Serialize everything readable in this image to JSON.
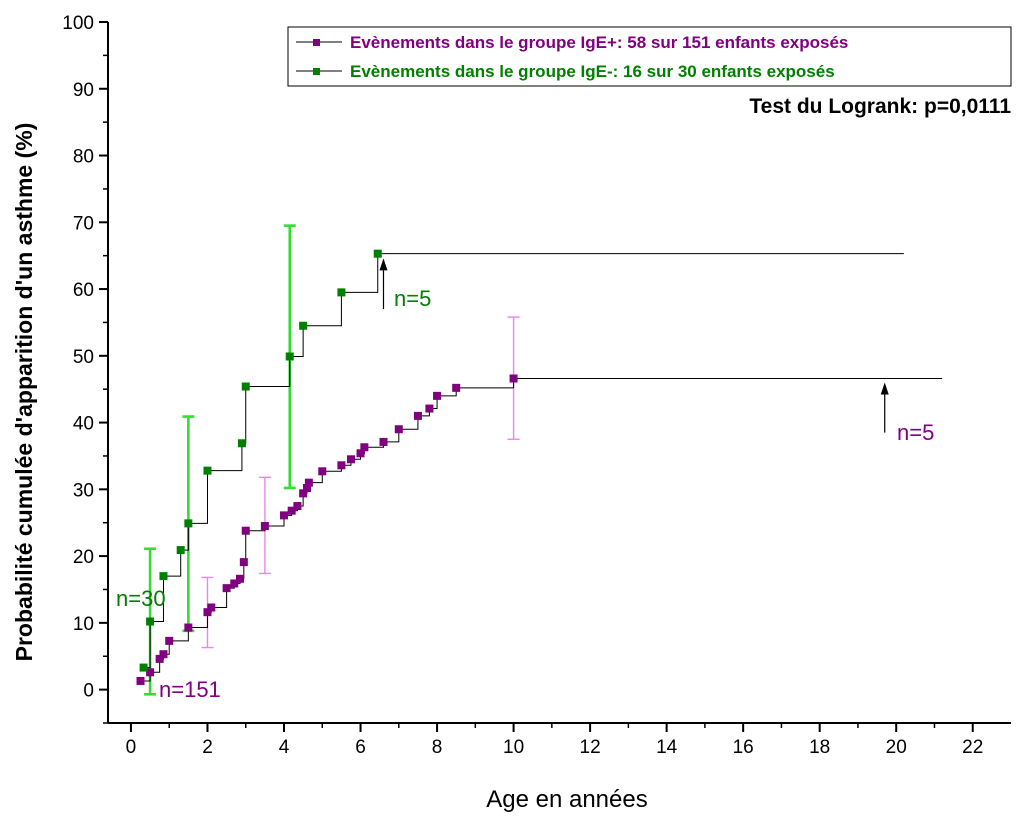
{
  "chart_data": {
    "type": "line",
    "title": "",
    "xlabel": "Age en années",
    "ylabel": "Probabilité cumulée d'apparition d'un asthme (%)",
    "xlim": [
      -0.6,
      23
    ],
    "ylim": [
      -5,
      100
    ],
    "x_ticks": [
      "0",
      "2",
      "4",
      "6",
      "8",
      "10",
      "12",
      "14",
      "16",
      "18",
      "20",
      "22"
    ],
    "y_ticks": [
      "0",
      "10",
      "20",
      "30",
      "40",
      "50",
      "60",
      "70",
      "80",
      "90",
      "100"
    ],
    "grid": false,
    "legend_position": "top-right",
    "series": [
      {
        "name": "Evènements dans le groupe IgE+: 58 sur 151 enfants exposés",
        "color": "#800080",
        "errorbar_color": "#ee82ee",
        "points": [
          [
            0.25,
            1.3
          ],
          [
            0.5,
            2.6
          ],
          [
            0.75,
            4.6
          ],
          [
            0.85,
            5.3
          ],
          [
            1.0,
            7.3
          ],
          [
            1.5,
            9.3
          ],
          [
            2.0,
            11.6
          ],
          [
            2.1,
            12.3
          ],
          [
            2.5,
            15.2
          ],
          [
            2.7,
            15.9
          ],
          [
            2.85,
            16.6
          ],
          [
            2.95,
            19.1
          ],
          [
            3.0,
            23.8
          ],
          [
            3.5,
            24.5
          ],
          [
            4.0,
            26.1
          ],
          [
            4.2,
            26.8
          ],
          [
            4.35,
            27.5
          ],
          [
            4.5,
            29.4
          ],
          [
            4.6,
            30.2
          ],
          [
            4.65,
            31.0
          ],
          [
            5.0,
            32.7
          ],
          [
            5.5,
            33.6
          ],
          [
            5.75,
            34.5
          ],
          [
            6.0,
            35.4
          ],
          [
            6.1,
            36.3
          ],
          [
            6.6,
            37.1
          ],
          [
            7.0,
            39.0
          ],
          [
            7.5,
            41.0
          ],
          [
            7.8,
            42.1
          ],
          [
            8.0,
            44.0
          ],
          [
            8.5,
            45.2
          ],
          [
            10.0,
            46.6
          ]
        ],
        "end_x": 21.2,
        "error_bars": [
          {
            "x": 2.0,
            "low": 6.3,
            "high": 16.8
          },
          {
            "x": 3.5,
            "low": 17.4,
            "high": 31.8
          },
          {
            "x": 10.0,
            "low": 37.5,
            "high": 55.8
          }
        ]
      },
      {
        "name": "Evènements dans le groupe IgE-: 16 sur 30 enfants exposés",
        "color": "#008000",
        "errorbar_color": "#33dd33",
        "points": [
          [
            0.33,
            3.3
          ],
          [
            0.5,
            10.2
          ],
          [
            0.85,
            17.0
          ],
          [
            1.3,
            20.9
          ],
          [
            1.5,
            24.9
          ],
          [
            2.0,
            32.8
          ],
          [
            2.9,
            36.9
          ],
          [
            3.0,
            45.4
          ],
          [
            4.15,
            49.9
          ],
          [
            4.5,
            54.5
          ],
          [
            5.5,
            59.5
          ],
          [
            6.45,
            65.3
          ]
        ],
        "end_x": 20.2,
        "error_bars": [
          {
            "x": 0.5,
            "low": -0.7,
            "high": 21.1
          },
          {
            "x": 1.5,
            "low": 8.8,
            "high": 40.9
          },
          {
            "x": 4.15,
            "low": 30.2,
            "high": 69.5
          }
        ]
      }
    ],
    "annotations": {
      "test": "Test du Logrank: p=0,0111",
      "n_green_start": "n=30",
      "n_purple_start": "n=151",
      "n_green_end": "n=5",
      "n_purple_end": "n=5"
    },
    "arrows": [
      {
        "x": 6.6,
        "y_from": 57.0,
        "y_to": 64.6
      },
      {
        "x": 19.7,
        "y_from": 38.5,
        "y_to": 46.0
      }
    ]
  }
}
